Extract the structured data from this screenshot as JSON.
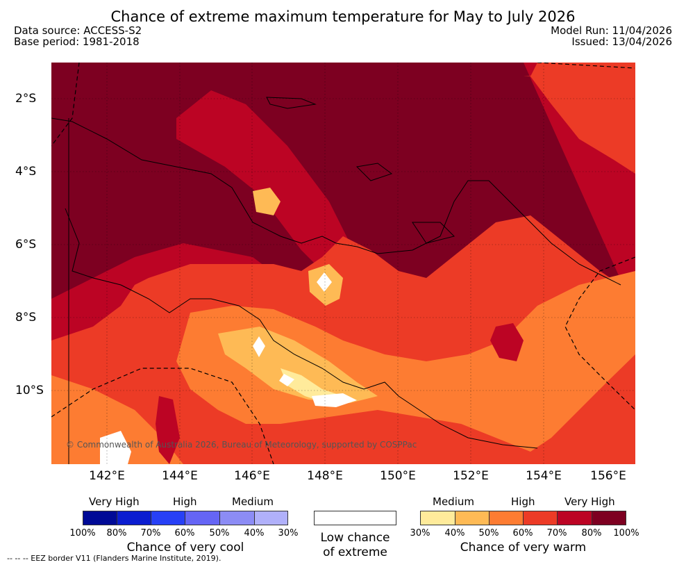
{
  "header": {
    "title": "Chance of extreme maximum temperature for May to July 2026",
    "data_source": "Data source: ACCESS-S2",
    "base_period": "Base period: 1981-2018",
    "model_run": "Model Run: 11/04/2026",
    "issued": "Issued: 13/04/2026"
  },
  "map": {
    "lat_labels": [
      "2°S",
      "4°S",
      "6°S",
      "8°S",
      "10°S"
    ],
    "lon_labels": [
      "142°E",
      "144°E",
      "146°E",
      "148°E",
      "150°E",
      "152°E",
      "154°E",
      "156°E"
    ],
    "copyright": "© Commonwealth of Australia 2026, Bureau of Meteorology, supported by COSPPac",
    "eez_note": "--  --  -- EEZ border V11 (Flanders Marine Institute, 2019)."
  },
  "legend": {
    "cool": {
      "levels": [
        "Very High",
        "High",
        "Medium"
      ],
      "percent_labels": [
        "100%",
        "80%",
        "70%",
        "60%",
        "50%",
        "40%",
        "30%"
      ],
      "colors": [
        "#000a96",
        "#0b1dd0",
        "#2740f6",
        "#6565f5",
        "#8c8cf5",
        "#b0b0fa"
      ],
      "title": "Chance of very cool"
    },
    "low": {
      "title_line1": "Low chance",
      "title_line2": "of extreme",
      "color": "#ffffff"
    },
    "warm": {
      "levels": [
        "Medium",
        "High",
        "Very High"
      ],
      "percent_labels": [
        "30%",
        "40%",
        "50%",
        "60%",
        "70%",
        "80%",
        "100%"
      ],
      "colors": [
        "#ffeb9b",
        "#feba55",
        "#fd7c32",
        "#ec3b26",
        "#bc0424",
        "#7d0021"
      ],
      "title": "Chance of very warm"
    }
  }
}
